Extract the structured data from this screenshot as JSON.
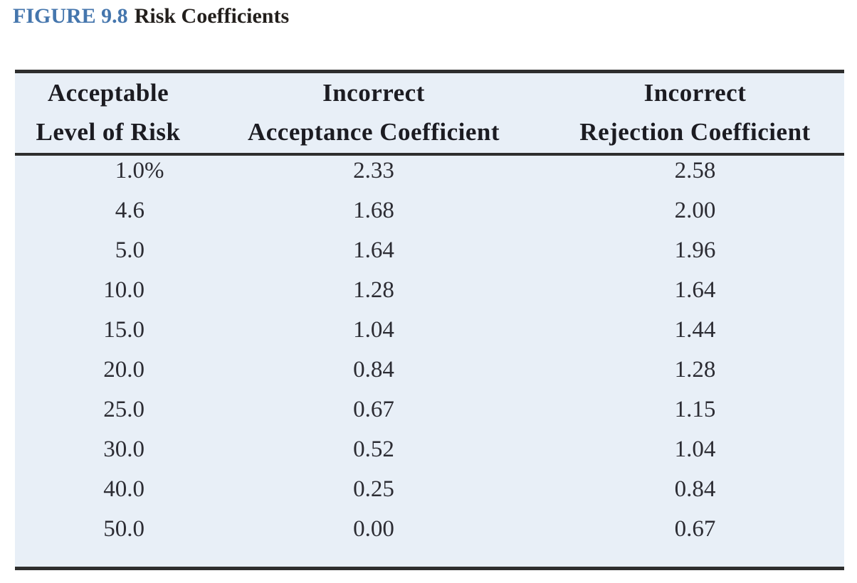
{
  "figure": {
    "label": "FIGURE 9.8",
    "title": "Risk Coefficients"
  },
  "table": {
    "columns": [
      {
        "line1": "Acceptable",
        "line2": "Level of Risk"
      },
      {
        "line1": "Incorrect",
        "line2": "Acceptance Coefficient"
      },
      {
        "line1": "Incorrect",
        "line2": "Rejection Coefficient"
      }
    ],
    "rows": [
      {
        "risk": "1.0",
        "suffix": "%",
        "acceptance": "2.33",
        "rejection": "2.58"
      },
      {
        "risk": "4.6",
        "acceptance": "1.68",
        "rejection": "2.00"
      },
      {
        "risk": "5.0",
        "acceptance": "1.64",
        "rejection": "1.96"
      },
      {
        "risk": "10.0",
        "acceptance": "1.28",
        "rejection": "1.64"
      },
      {
        "risk": "15.0",
        "acceptance": "1.04",
        "rejection": "1.44"
      },
      {
        "risk": "20.0",
        "acceptance": "0.84",
        "rejection": "1.28"
      },
      {
        "risk": "25.0",
        "acceptance": "0.67",
        "rejection": "1.15"
      },
      {
        "risk": "30.0",
        "acceptance": "0.52",
        "rejection": "1.04"
      },
      {
        "risk": "40.0",
        "acceptance": "0.25",
        "rejection": "0.84"
      },
      {
        "risk": "50.0",
        "acceptance": "0.00",
        "rejection": "0.67"
      }
    ]
  },
  "colors": {
    "accent_blue": "#4576ad",
    "table_background": "#e8eff7",
    "rule": "#2e2e2e"
  }
}
